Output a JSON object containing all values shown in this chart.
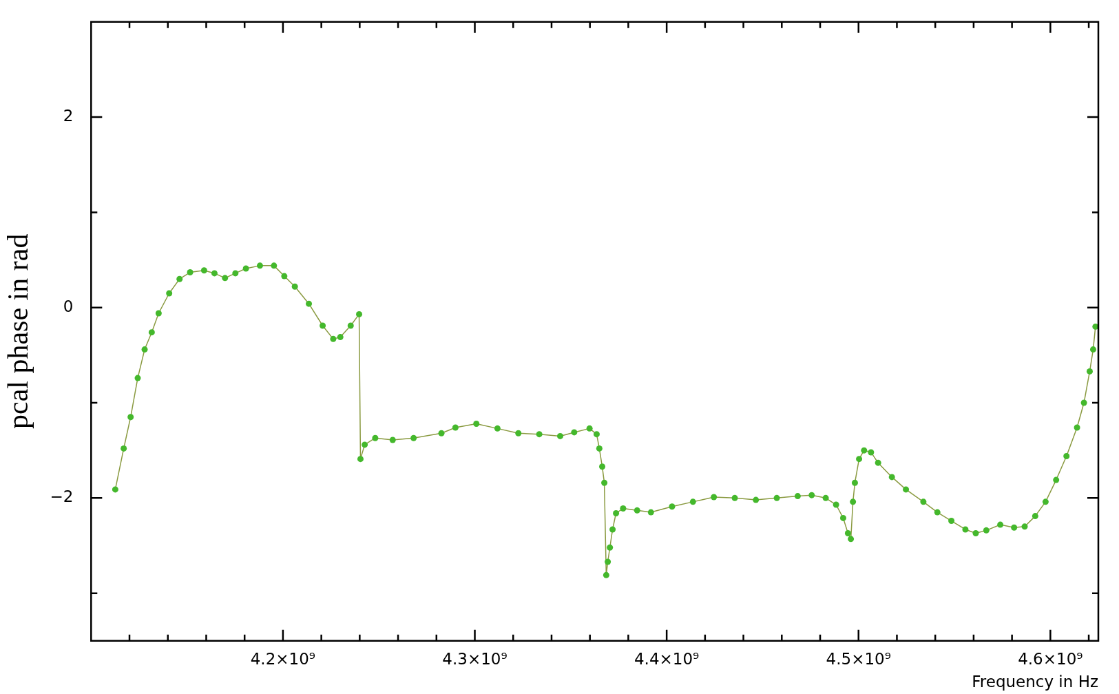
{
  "chart_data": {
    "type": "line",
    "xlabel": "Frequency in Hz",
    "ylabel": "pcal phase in rad",
    "marker": "circle",
    "line_style": "solid",
    "xlim": [
      4100000000.0,
      4625000000.0
    ],
    "ylim": [
      -3.5,
      3
    ],
    "xticks": [
      {
        "value": 4120000000.0,
        "label": null
      },
      {
        "value": 4140000000.0,
        "label": null
      },
      {
        "value": 4160000000.0,
        "label": null
      },
      {
        "value": 4180000000.0,
        "label": null
      },
      {
        "value": 4200000000.0,
        "label": "4.2×10⁹"
      },
      {
        "value": 4220000000.0,
        "label": null
      },
      {
        "value": 4240000000.0,
        "label": null
      },
      {
        "value": 4260000000.0,
        "label": null
      },
      {
        "value": 4280000000.0,
        "label": null
      },
      {
        "value": 4300000000.0,
        "label": "4.3×10⁹"
      },
      {
        "value": 4320000000.0,
        "label": null
      },
      {
        "value": 4340000000.0,
        "label": null
      },
      {
        "value": 4360000000.0,
        "label": null
      },
      {
        "value": 4380000000.0,
        "label": null
      },
      {
        "value": 4400000000.0,
        "label": "4.4×10⁹"
      },
      {
        "value": 4420000000.0,
        "label": null
      },
      {
        "value": 4440000000.0,
        "label": null
      },
      {
        "value": 4460000000.0,
        "label": null
      },
      {
        "value": 4480000000.0,
        "label": null
      },
      {
        "value": 4500000000.0,
        "label": "4.5×10⁹"
      },
      {
        "value": 4520000000.0,
        "label": null
      },
      {
        "value": 4540000000.0,
        "label": null
      },
      {
        "value": 4560000000.0,
        "label": null
      },
      {
        "value": 4580000000.0,
        "label": null
      },
      {
        "value": 4600000000.0,
        "label": "4.6×10⁹"
      },
      {
        "value": 4620000000.0,
        "label": null
      }
    ],
    "yticks": [
      {
        "value": -3,
        "label": null
      },
      {
        "value": -2,
        "label": "−2"
      },
      {
        "value": -1,
        "label": null
      },
      0,
      {
        "value": 1,
        "label": null
      },
      2
    ],
    "series": [
      {
        "color": "#44b82c",
        "x": [
          4112600000.0,
          4117000000.0,
          4120600000.0,
          4124300000.0,
          4127900000.0,
          4131600000.0,
          4135200000.0,
          4140700000.0,
          4146100000.0,
          4151600000.0,
          4158900000.0,
          4164300000.0,
          4169800000.0,
          4175200000.0,
          4180700000.0,
          4188000000.0,
          4195300000.0,
          4200700000.0,
          4206200000.0,
          4213500000.0,
          4220700000.0,
          4226200000.0,
          4229900000.0,
          4235300000.0,
          4239700000.0,
          4240400000.0,
          4242600000.0,
          4248100000.0,
          4257200000.0,
          4268100000.0,
          4282600000.0,
          4289900000.0,
          4300800000.0,
          4311800000.0,
          4322700000.0,
          4333600000.0,
          4344500000.0,
          4351800000.0,
          4359800000.0,
          4363500000.0,
          4364900000.0,
          4366400000.0,
          4367500000.0,
          4368500000.0,
          4369300000.0,
          4370400000.0,
          4371800000.0,
          4373600000.0,
          4377300000.0,
          4384600000.0,
          4391800000.0,
          4402800000.0,
          4413700000.0,
          4424600000.0,
          4435500000.0,
          4446500000.0,
          4457400000.0,
          4468300000.0,
          4475600000.0,
          4482900000.0,
          4488300000.0,
          4492000000.0,
          4494500000.0,
          4496000000.0,
          4497100000.0,
          4498100000.0,
          4500300000.0,
          4502900000.0,
          4506500000.0,
          4510200000.0,
          4517400000.0,
          4524700000.0,
          4533800000.0,
          4541100000.0,
          4548400000.0,
          4555700000.0,
          4561100000.0,
          4566600000.0,
          4573900000.0,
          4581100000.0,
          4586600000.0,
          4592100000.0,
          4597500000.0,
          4603000000.0,
          4608400000.0,
          4613900000.0,
          4617500000.0,
          4620500000.0,
          4622300000.0,
          4623500000.0
        ],
        "values": [
          -1.91,
          -1.48,
          -1.15,
          -0.74,
          -0.44,
          -0.26,
          -0.06,
          0.15,
          0.3,
          0.37,
          0.39,
          0.36,
          0.31,
          0.36,
          0.41,
          0.44,
          0.44,
          0.33,
          0.22,
          0.04,
          -0.19,
          -0.33,
          -0.31,
          -0.19,
          -0.07,
          -1.59,
          -1.44,
          -1.37,
          -1.39,
          -1.37,
          -1.32,
          -1.26,
          -1.22,
          -1.27,
          -1.32,
          -1.33,
          -1.35,
          -1.31,
          -1.27,
          -1.33,
          -1.48,
          -1.67,
          -1.84,
          -2.81,
          -2.67,
          -2.52,
          -2.33,
          -2.16,
          -2.11,
          -2.13,
          -2.15,
          -2.09,
          -2.04,
          -1.99,
          -2.0,
          -2.02,
          -2.0,
          -1.98,
          -1.97,
          -2.0,
          -2.07,
          -2.21,
          -2.37,
          -2.43,
          -2.04,
          -1.84,
          -1.59,
          -1.5,
          -1.52,
          -1.63,
          -1.78,
          -1.91,
          -2.04,
          -2.15,
          -2.24,
          -2.33,
          -2.37,
          -2.34,
          -2.28,
          -2.31,
          -2.3,
          -2.19,
          -2.04,
          -1.81,
          -1.56,
          -1.26,
          -1.0,
          -0.67,
          -0.44,
          -0.2
        ]
      }
    ]
  }
}
